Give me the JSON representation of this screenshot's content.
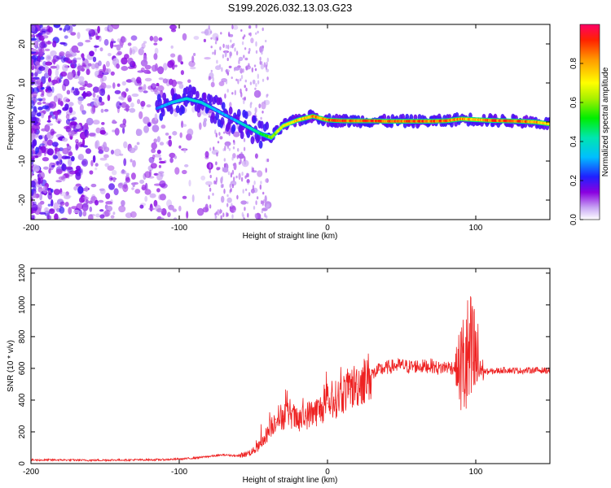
{
  "title": "S199.2026.032.13.03.G23",
  "chart_data": [
    {
      "type": "heatmap",
      "xlabel": "Height of straight line (km)",
      "ylabel": "Frequency (Hz)",
      "xlim": [
        -200,
        150
      ],
      "ylim": [
        -25,
        25
      ],
      "xticks": [
        -200,
        -100,
        0,
        100
      ],
      "yticks": [
        20,
        10,
        0,
        -10,
        -20
      ],
      "colorbar": {
        "label": "Normalized spectral amplitude",
        "range": [
          0,
          1
        ],
        "ticks": [
          "0.0",
          "0.2",
          "0.4",
          "0.6",
          "0.8"
        ]
      },
      "ridge_frequency_track": {
        "x": [
          -115,
          -105,
          -95,
          -85,
          -75,
          -65,
          -55,
          -45,
          -38,
          -30,
          -20,
          -10,
          0,
          10,
          20,
          30,
          40,
          50,
          60,
          70,
          80,
          90,
          100,
          110,
          120,
          130,
          140,
          150
        ],
        "y": [
          3.5,
          5,
          6,
          5,
          3,
          1,
          -1,
          -3,
          -4,
          -1,
          0.5,
          1.5,
          0.5,
          0.3,
          0.3,
          0.3,
          0.2,
          0.2,
          0.2,
          0.2,
          0.3,
          0.8,
          0.6,
          0.4,
          0.3,
          0.2,
          0,
          -0.5
        ],
        "amplitude": [
          0.3,
          0.35,
          0.4,
          0.4,
          0.35,
          0.3,
          0.4,
          0.5,
          0.6,
          0.7,
          0.8,
          0.85,
          0.9,
          0.92,
          0.92,
          0.92,
          0.9,
          0.9,
          0.9,
          0.9,
          0.9,
          0.85,
          0.8,
          0.9,
          0.9,
          0.9,
          0.85,
          0.8
        ]
      }
    },
    {
      "type": "line",
      "xlabel": "Height of straight line (km)",
      "ylabel": "SNR (10 * v/v)",
      "xlim": [
        -200,
        150
      ],
      "ylim": [
        0,
        1230
      ],
      "xticks": [
        -200,
        -100,
        0,
        100
      ],
      "yticks": [
        0,
        200,
        400,
        600,
        800,
        1000,
        1200
      ],
      "series": [
        {
          "name": "SNR",
          "color": "#ee2222",
          "x": [
            -200,
            -180,
            -160,
            -140,
            -120,
            -110,
            -100,
            -90,
            -80,
            -70,
            -60,
            -55,
            -50,
            -45,
            -40,
            -35,
            -30,
            -25,
            -20,
            -15,
            -10,
            -5,
            0,
            5,
            10,
            15,
            20,
            25,
            30,
            35,
            40,
            45,
            50,
            55,
            60,
            65,
            70,
            75,
            80,
            85,
            90,
            95,
            100,
            105,
            110,
            120,
            130,
            140,
            150
          ],
          "y": [
            22,
            23,
            21,
            23,
            24,
            25,
            28,
            35,
            45,
            55,
            48,
            60,
            80,
            120,
            200,
            280,
            300,
            320,
            260,
            300,
            320,
            340,
            380,
            400,
            440,
            470,
            500,
            530,
            560,
            590,
            605,
            615,
            620,
            610,
            615,
            612,
            618,
            600,
            610,
            605,
            600,
            640,
            650,
            580,
            580,
            590,
            585,
            590,
            585
          ]
        }
      ]
    }
  ]
}
